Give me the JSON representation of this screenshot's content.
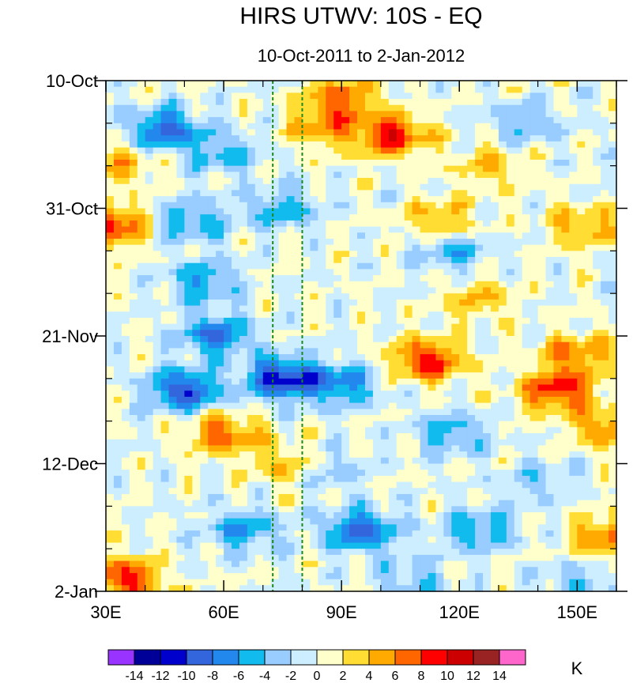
{
  "chart_data": {
    "type": "heatmap",
    "title": "HIRS UTWV: 10S - EQ",
    "subtitle": "10-Oct-2011 to 2-Jan-2012",
    "xlabel": "",
    "ylabel": "",
    "x_range": [
      30,
      160
    ],
    "x_ticks": [
      {
        "value": 30,
        "label": "30E"
      },
      {
        "value": 60,
        "label": "60E"
      },
      {
        "value": 90,
        "label": "90E"
      },
      {
        "value": 120,
        "label": "120E"
      },
      {
        "value": 150,
        "label": "150E"
      }
    ],
    "x_minor_step": 10,
    "y_range_days": [
      0,
      84
    ],
    "y_ticks": [
      {
        "value": 0,
        "label": "10-Oct"
      },
      {
        "value": 21,
        "label": "31-Oct"
      },
      {
        "value": 42,
        "label": "21-Nov"
      },
      {
        "value": 63,
        "label": "12-Dec"
      },
      {
        "value": 84,
        "label": "2-Jan"
      }
    ],
    "y_minor_step": 7,
    "reference_lines_lon": [
      72.5,
      80
    ],
    "reference_line_color": "#1a8a1a",
    "colorbar": {
      "unit": "K",
      "levels": [
        "-14",
        "-12",
        "-10",
        "-8",
        "-6",
        "-4",
        "-2",
        "0",
        "2",
        "4",
        "6",
        "8",
        "10",
        "12",
        "14"
      ],
      "colors": [
        "#9933ff",
        "#000099",
        "#0000cc",
        "#3366dd",
        "#2288ee",
        "#11bbee",
        "#99ccff",
        "#cceeff",
        "#ffffcc",
        "#ffdd33",
        "#ffaa00",
        "#ff6600",
        "#ff0000",
        "#cc0000",
        "#992222",
        "#ff66cc"
      ]
    },
    "anomaly_features": [
      {
        "lon": 90,
        "day": 3,
        "value": 7
      },
      {
        "lon": 103,
        "day": 9,
        "value": 9
      },
      {
        "lon": 85,
        "day": 8,
        "value": 5
      },
      {
        "lon": 45,
        "day": 8,
        "value": -9
      },
      {
        "lon": 60,
        "day": 12,
        "value": -5
      },
      {
        "lon": 35,
        "day": 14,
        "value": 4
      },
      {
        "lon": 52,
        "day": 23,
        "value": -6
      },
      {
        "lon": 75,
        "day": 21,
        "value": -5
      },
      {
        "lon": 31,
        "day": 24,
        "value": 9
      },
      {
        "lon": 115,
        "day": 23,
        "value": 5
      },
      {
        "lon": 152,
        "day": 24,
        "value": 5
      },
      {
        "lon": 128,
        "day": 14,
        "value": 4
      },
      {
        "lon": 137,
        "day": 7,
        "value": -4
      },
      {
        "lon": 118,
        "day": 28,
        "value": -5
      },
      {
        "lon": 55,
        "day": 33,
        "value": -6
      },
      {
        "lon": 125,
        "day": 36,
        "value": 4
      },
      {
        "lon": 58,
        "day": 42,
        "value": -8
      },
      {
        "lon": 75,
        "day": 49,
        "value": -11
      },
      {
        "lon": 50,
        "day": 51,
        "value": -10
      },
      {
        "lon": 90,
        "day": 50,
        "value": -7
      },
      {
        "lon": 112,
        "day": 46,
        "value": 9
      },
      {
        "lon": 145,
        "day": 51,
        "value": 9
      },
      {
        "lon": 150,
        "day": 45,
        "value": 6
      },
      {
        "lon": 60,
        "day": 58,
        "value": 7
      },
      {
        "lon": 75,
        "day": 63,
        "value": 4
      },
      {
        "lon": 118,
        "day": 58,
        "value": -5
      },
      {
        "lon": 158,
        "day": 57,
        "value": 6
      },
      {
        "lon": 95,
        "day": 74,
        "value": -9
      },
      {
        "lon": 65,
        "day": 74,
        "value": -6
      },
      {
        "lon": 125,
        "day": 74,
        "value": -6
      },
      {
        "lon": 35,
        "day": 82,
        "value": 9
      },
      {
        "lon": 158,
        "day": 75,
        "value": 7
      },
      {
        "lon": 108,
        "day": 82,
        "value": -4
      },
      {
        "lon": 88,
        "day": 64,
        "value": -3
      },
      {
        "lon": 140,
        "day": 66,
        "value": -3
      },
      {
        "lon": 150,
        "day": 83,
        "value": -4
      }
    ]
  }
}
